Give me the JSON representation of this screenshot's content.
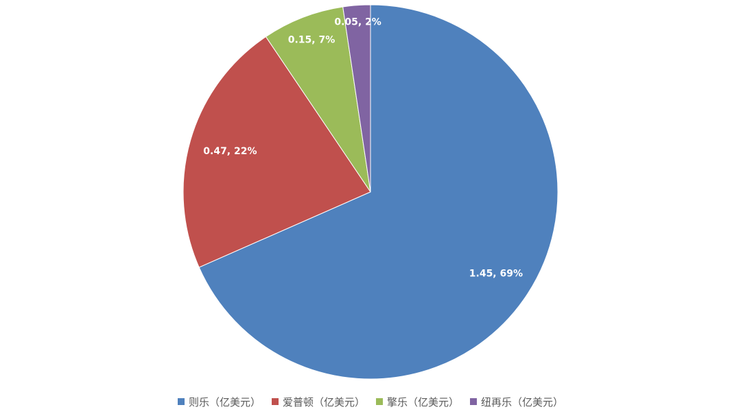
{
  "chart_data": {
    "type": "pie",
    "title": "",
    "series": [
      {
        "categories": [
          "则乐（亿美元）",
          "爱普顿（亿美元）",
          "擎乐（亿美元）",
          "纽再乐（亿美元）"
        ],
        "values": [
          1.45,
          0.47,
          0.15,
          0.05
        ],
        "percent_labels": [
          "69%",
          "22%",
          "7%",
          "2%"
        ],
        "data_labels": [
          "1.45, 69%",
          "0.47, 22%",
          "0.15, 7%",
          "0.05, 2%"
        ]
      }
    ],
    "colors": [
      "#4F81BD",
      "#C0504D",
      "#9BBB59",
      "#8064A2"
    ],
    "legend_position": "bottom",
    "start_angle_deg": 0,
    "direction": "clockwise"
  }
}
